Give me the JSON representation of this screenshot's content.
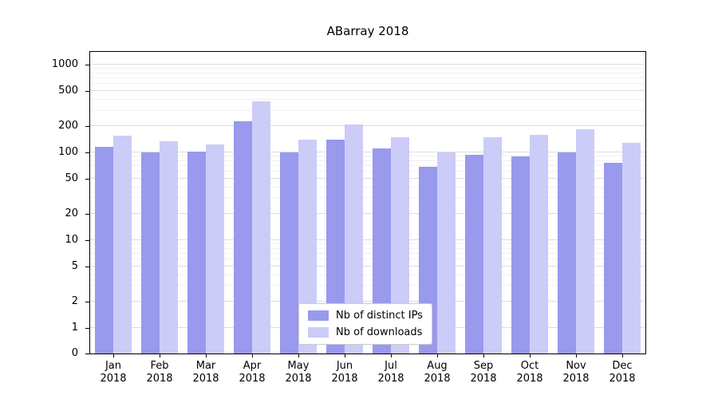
{
  "title": "ABarray 2018",
  "legend": {
    "items": [
      {
        "label": "Nb of distinct IPs",
        "color": "#9999ee"
      },
      {
        "label": "Nb of downloads",
        "color": "#ccccf8"
      }
    ]
  },
  "chart_data": {
    "type": "bar",
    "scale": "symlog",
    "title": "ABarray 2018",
    "months": [
      "Jan",
      "Feb",
      "Mar",
      "Apr",
      "May",
      "Jun",
      "Jul",
      "Aug",
      "Sep",
      "Oct",
      "Nov",
      "Dec"
    ],
    "year": "2018",
    "series": [
      {
        "name": "Nb of distinct IPs",
        "color": "#9999ee",
        "values": [
          115,
          100,
          103,
          225,
          100,
          140,
          110,
          68,
          93,
          90,
          100,
          76
        ]
      },
      {
        "name": "Nb of downloads",
        "color": "#ccccf8",
        "values": [
          155,
          135,
          123,
          380,
          140,
          210,
          150,
          100,
          150,
          160,
          185,
          128
        ]
      }
    ],
    "yticks": [
      0,
      1,
      2,
      5,
      10,
      20,
      50,
      100,
      200,
      500,
      1000
    ],
    "ylim": [
      0,
      1400
    ],
    "grid": true,
    "legend_position": "lower center"
  },
  "colors": {
    "major_grid": "#dddddd",
    "minor_grid": "#f1f1f1",
    "axis": "#000000",
    "background": "#ffffff"
  }
}
